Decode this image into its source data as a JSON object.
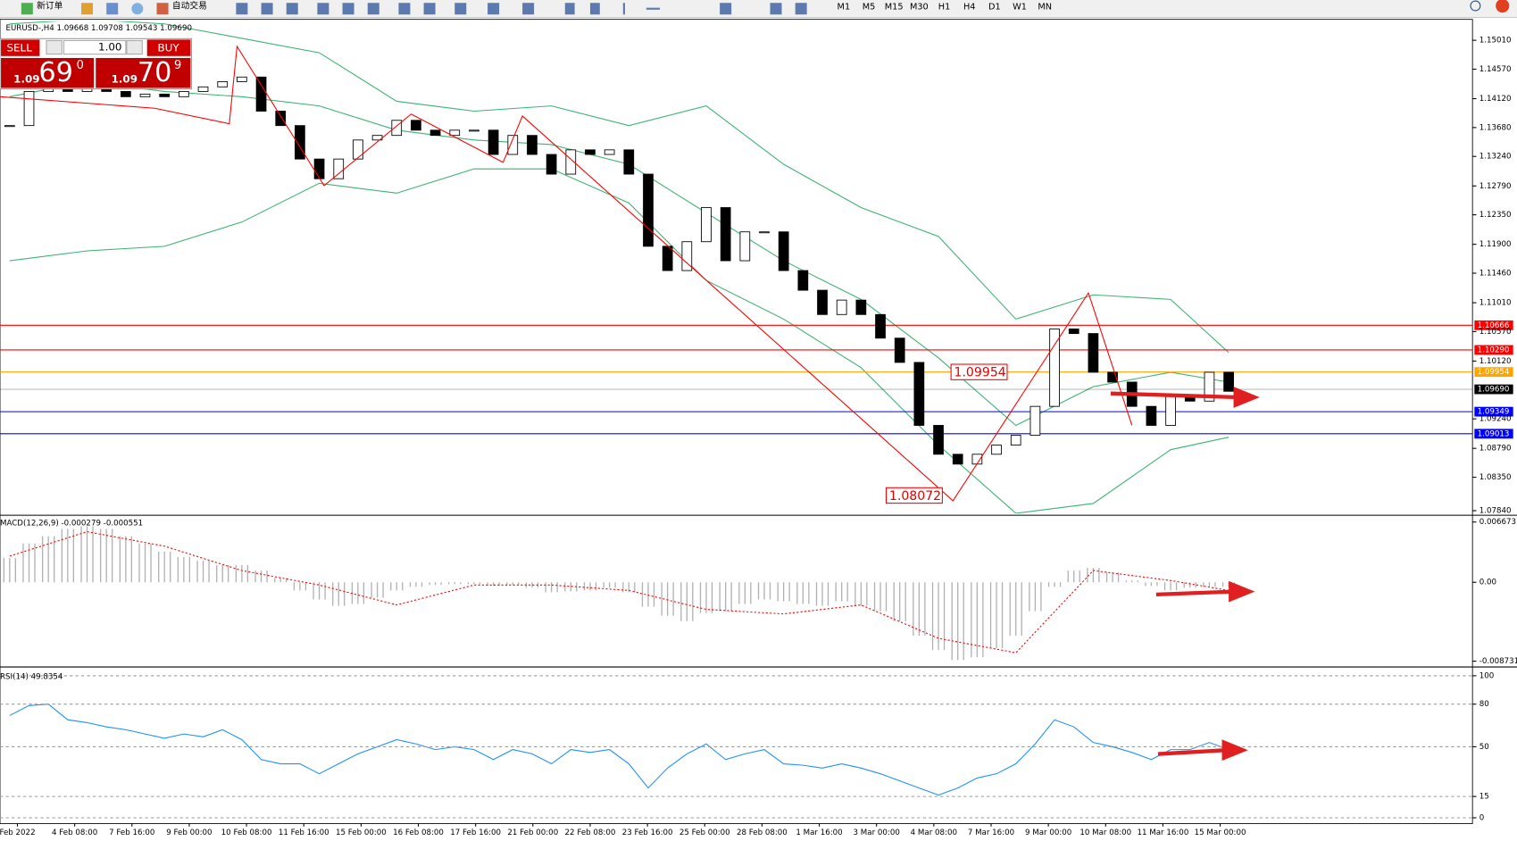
{
  "toolbar": {
    "new_order": "新订单",
    "auto_trading": "自动交易",
    "timeframes": [
      "M1",
      "M5",
      "M15",
      "M30",
      "H1",
      "H4",
      "D1",
      "W1",
      "MN"
    ]
  },
  "trade_panel": {
    "sell": "SELL",
    "buy": "BUY",
    "lots": "1.00",
    "sell_price": {
      "prefix": "1.09",
      "main": "69",
      "sup": "0"
    },
    "buy_price": {
      "prefix": "1.09",
      "main": "70",
      "sup": "9"
    }
  },
  "chart_data": [
    {
      "type": "candlestick",
      "title": "EURUSD-,H4 1.09668 1.09708 1.09543 1.09690",
      "up_color": "#ffffff",
      "down_color": "#000000",
      "values": [
        1.1371,
        1.1423,
        1.143,
        1.1423,
        1.1427,
        1.1423,
        1.1415,
        1.1419,
        1.1415,
        1.1423,
        1.143,
        1.1438,
        1.1445,
        1.1393,
        1.1371,
        1.132,
        1.129,
        1.132,
        1.1349,
        1.1356,
        1.1379,
        1.1364,
        1.1356,
        1.1364,
        1.1364,
        1.1327,
        1.1356,
        1.1327,
        1.1297,
        1.1334,
        1.1327,
        1.1334,
        1.1297,
        1.1187,
        1.115,
        1.1194,
        1.1246,
        1.1165,
        1.1209,
        1.1209,
        1.115,
        1.112,
        1.1083,
        1.1105,
        1.1083,
        1.1047,
        1.101,
        1.0914,
        1.087,
        1.0855,
        1.087,
        1.0884,
        1.0899,
        1.0943,
        1.1061,
        1.1054,
        1.0995,
        1.098,
        1.0943,
        1.0914,
        1.0958,
        1.0951,
        1.0995,
        1.0966
      ],
      "bands": {
        "color": "#3cb371",
        "upper": [
          1.1526,
          1.1533,
          1.1526,
          1.1504,
          1.1482,
          1.1408,
          1.1393,
          1.1401,
          1.1371,
          1.1401,
          1.1312,
          1.1246,
          1.1202,
          1.1076,
          1.1113,
          1.1106,
          1.1025
        ],
        "middle": [
          1.1415,
          1.1438,
          1.1423,
          1.1415,
          1.1401,
          1.1364,
          1.1349,
          1.1342,
          1.1312,
          1.1238,
          1.1165,
          1.1106,
          1.1017,
          1.0914,
          1.0973,
          1.0995,
          1.098
        ],
        "lower": [
          1.1165,
          1.118,
          1.1187,
          1.1224,
          1.1283,
          1.1268,
          1.1305,
          1.1305,
          1.1253,
          1.1135,
          1.1076,
          1.1002,
          1.0884,
          1.078,
          1.0795,
          1.0877,
          1.0896
        ]
      },
      "hlines": [
        {
          "value": 1.10666,
          "color": "#ff0000"
        },
        {
          "value": 1.1029,
          "label": "1.10290",
          "color": "#ff0000"
        },
        {
          "value": 1.09954,
          "color": "#ffa500"
        },
        {
          "value": 1.0969,
          "label": "1.09690",
          "color": "#000000"
        },
        {
          "value": 1.09349,
          "color": "#0000ff"
        },
        {
          "value": 1.09013,
          "color": "#0000ff"
        }
      ],
      "annotations": [
        1.09954,
        1.08072
      ],
      "ylim": [
        1.078,
        1.153
      ],
      "yticks": [
        {
          "value": 1.1501,
          "label": "1.15010"
        },
        {
          "value": 1.1457,
          "label": "1.14570"
        },
        {
          "value": 1.1412,
          "label": "1.14120"
        },
        {
          "value": 1.1368,
          "label": "1.13680"
        },
        {
          "value": 1.1324,
          "label": "1.13240"
        },
        {
          "value": 1.1279,
          "label": "1.12790"
        },
        {
          "value": 1.1235,
          "label": "1.12350"
        },
        {
          "value": 1.119,
          "label": "1.11900"
        },
        {
          "value": 1.1146,
          "label": "1.11460"
        },
        {
          "value": 1.1101,
          "label": "1.11010"
        },
        {
          "value": 1.1057,
          "label": "1.10570"
        },
        {
          "value": 1.1012,
          "label": "1.10120"
        },
        {
          "value": 1.0924,
          "label": "1.09240"
        },
        {
          "value": 1.0879,
          "label": "1.08790"
        },
        {
          "value": 1.0835,
          "label": "1.08350"
        },
        {
          "value": 1.0784,
          "label": "1.07840"
        }
      ],
      "time_axis_labels": [
        "Feb 2022",
        "4 Feb 08:00",
        "7 Feb 16:00",
        "9 Feb 00:00",
        "10 Feb 08:00",
        "11 Feb 16:00",
        "15 Feb 00:00",
        "16 Feb 08:00",
        "17 Feb 16:00",
        "21 Feb 00:00",
        "22 Feb 08:00",
        "23 Feb 16:00",
        "25 Feb 00:00",
        "28 Feb 08:00",
        "1 Mar 16:00",
        "3 Mar 00:00",
        "4 Mar 08:00",
        "7 Mar 16:00",
        "9 Mar 00:00",
        "10 Mar 08:00",
        "11 Mar 16:00",
        "15 Mar 00:00"
      ]
    },
    {
      "type": "macd",
      "title": "MACD(12,26,9) -0.000279 -0.000551",
      "color": "#b0b0b0",
      "signal_color": "#ff0000",
      "values": [
        0.0027,
        0.0043,
        0.0051,
        0.0059,
        0.0062,
        0.0059,
        0.0051,
        0.0043,
        0.0034,
        0.0028,
        0.0024,
        0.0019,
        0.0019,
        0.0013,
        0.0005,
        -0.0009,
        -0.0019,
        -0.0026,
        -0.0024,
        -0.0017,
        -0.0009,
        -0.0005,
        -0.0003,
        -0.0002,
        -0.0002,
        -0.0004,
        -0.0003,
        -0.0006,
        -0.0011,
        -0.001,
        -0.0009,
        -0.0006,
        -0.0011,
        -0.0027,
        -0.0037,
        -0.0043,
        -0.0034,
        -0.0032,
        -0.0024,
        -0.0019,
        -0.0021,
        -0.0024,
        -0.0026,
        -0.0021,
        -0.0026,
        -0.0032,
        -0.0043,
        -0.0059,
        -0.0075,
        -0.0086,
        -0.0083,
        -0.0073,
        -0.0059,
        -0.0032,
        -0.0005,
        0.0013,
        0.0016,
        0.0011,
        0.0002,
        -0.0004,
        -0.0009,
        -0.0006,
        -0.0005,
        -0.0005
      ],
      "signal": [
        0.0029,
        0.0056,
        0.004,
        0.0013,
        -0.0003,
        -0.0025,
        -0.0003,
        -0.0003,
        -0.0009,
        -0.003,
        -0.0035,
        -0.0025,
        -0.0062,
        -0.0078,
        0.0013,
        0.0002,
        -0.0009
      ],
      "ylim": [
        -0.00916,
        0.00721
      ],
      "yticks": [
        0.006673,
        {
          "value": 0,
          "label": "0.00"
        },
        -0.008731
      ]
    },
    {
      "type": "rsi",
      "title": "RSI(14) 49.8354",
      "color": "#1e90ff",
      "values": [
        72,
        79,
        80,
        69,
        67,
        64,
        62,
        59,
        56,
        59,
        57,
        62,
        55,
        41,
        38,
        38,
        31,
        38,
        45,
        50,
        55,
        52,
        48,
        50,
        48,
        41,
        48,
        45,
        38,
        48,
        46,
        48,
        38,
        21,
        35,
        45,
        52,
        41,
        45,
        48,
        38,
        37,
        35,
        38,
        35,
        31,
        26,
        21,
        16,
        21,
        28,
        31,
        38,
        52,
        69,
        64,
        53,
        50,
        46,
        41,
        48,
        48,
        53,
        48
      ],
      "ylim": [
        -4.1,
        104.8
      ],
      "yticks": [
        100,
        80,
        50,
        15,
        0
      ]
    }
  ]
}
